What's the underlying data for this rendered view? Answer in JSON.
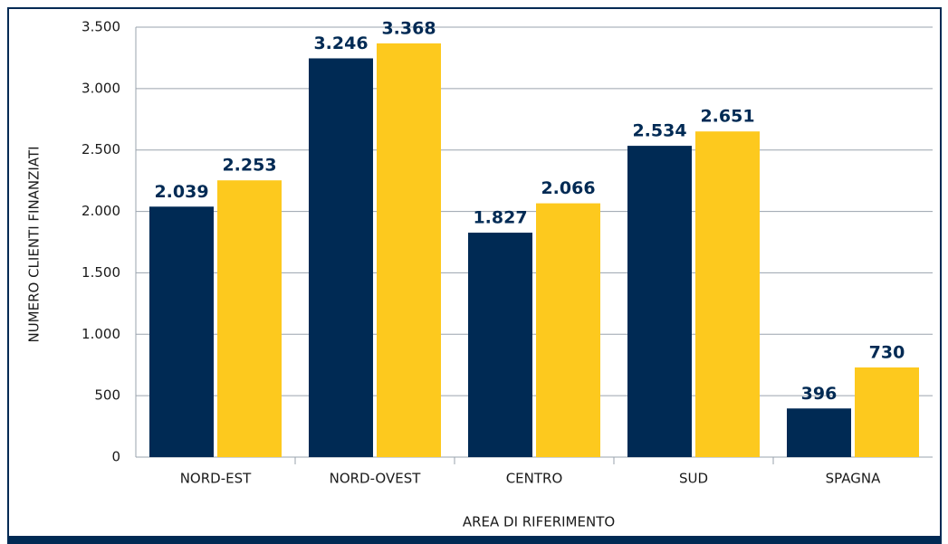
{
  "chart_data": {
    "type": "bar",
    "x_label": "AREA DI RIFERIMENTO",
    "y_label": "NUMERO CLIENTI FINANZIATI",
    "categories": [
      "NORD-EST",
      "NORD-OVEST",
      "CENTRO",
      "SUD",
      "SPAGNA"
    ],
    "series": [
      {
        "color": "#002a54",
        "values": [
          2039,
          3246,
          1827,
          2534,
          396
        ],
        "value_labels": [
          "2.039",
          "3.246",
          "1.827",
          "2.534",
          "396"
        ]
      },
      {
        "color": "#fdc91e",
        "values": [
          2253,
          3368,
          2066,
          2651,
          730
        ],
        "value_labels": [
          "2.253",
          "3.368",
          "2.066",
          "2.651",
          "730"
        ]
      }
    ],
    "ylim": [
      0,
      3500
    ],
    "yticks": [
      0,
      {
        "value": 500,
        "label": "500"
      },
      {
        "value": 1000,
        "label": "1.000"
      },
      {
        "value": 1500,
        "label": "1.500"
      },
      {
        "value": 2000,
        "label": "2.000"
      },
      {
        "value": 2500,
        "label": "2.500"
      },
      {
        "value": 3000,
        "label": "3.000"
      },
      {
        "value": 3500,
        "label": "3.500"
      }
    ],
    "grid": true
  }
}
